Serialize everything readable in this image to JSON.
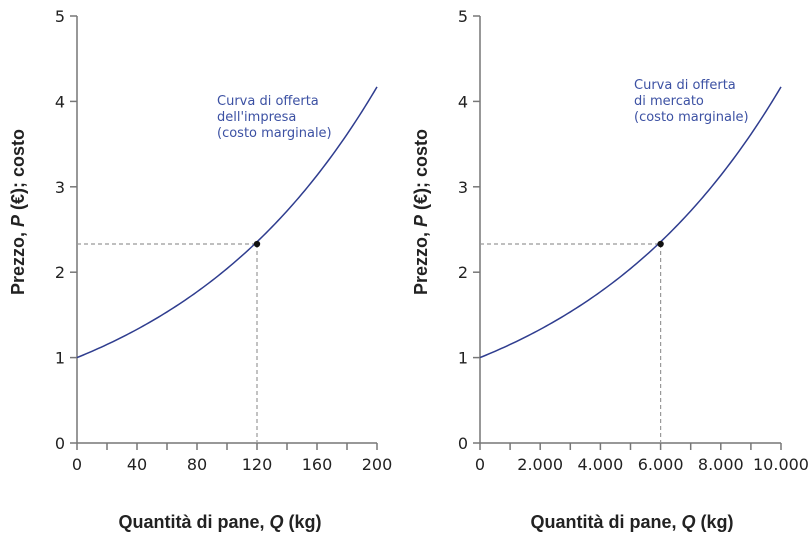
{
  "colors": {
    "curve": "#2f3d8f",
    "annotation": "#3c51a3",
    "axis": "#777777",
    "guide": "#999999",
    "point": "#111111"
  },
  "chart_data": [
    {
      "type": "line",
      "xlabel": {
        "pre": "Quantità di pane, ",
        "var": "Q",
        "post": " (kg)"
      },
      "ylabel": {
        "pre": "Prezzo, ",
        "var": "P",
        "post": " (€); costo"
      },
      "xlim": [
        0,
        200
      ],
      "ylim": [
        0,
        5
      ],
      "x_ticks": [
        0,
        40,
        80,
        120,
        160,
        200
      ],
      "x_tick_labels": [
        "0",
        "40",
        "80",
        "120",
        "160",
        "200"
      ],
      "x_minor_step": 20,
      "y_ticks": [
        0,
        1,
        2,
        3,
        4,
        5
      ],
      "y_tick_labels": [
        "0",
        "1",
        "2",
        "3",
        "4",
        "5"
      ],
      "grid": false,
      "series": [
        {
          "x": [
            0,
            20,
            40,
            60,
            80,
            100,
            120,
            140,
            160,
            180,
            200
          ],
          "y": [
            1.0,
            1.15,
            1.33,
            1.54,
            1.77,
            2.04,
            2.33,
            2.72,
            3.13,
            3.62,
            4.17
          ]
        }
      ],
      "annotation": [
        "Curva di offerta",
        "dell'impresa",
        "(costo marginale)"
      ],
      "highlight_point": {
        "x": 120,
        "y": 2.33
      }
    },
    {
      "type": "line",
      "xlabel": {
        "pre": "Quantità di pane, ",
        "var": "Q",
        "post": " (kg)"
      },
      "ylabel": {
        "pre": "Prezzo, ",
        "var": "P",
        "post": " (€); costo"
      },
      "xlim": [
        0,
        10000
      ],
      "ylim": [
        0,
        5
      ],
      "x_ticks": [
        0,
        2000,
        4000,
        6000,
        8000,
        10000
      ],
      "x_tick_labels": [
        "0",
        "2.000",
        "4.000",
        "6.000",
        "8.000",
        "10.000"
      ],
      "x_minor_step": 1000,
      "y_ticks": [
        0,
        1,
        2,
        3,
        4,
        5
      ],
      "y_tick_labels": [
        "0",
        "1",
        "2",
        "3",
        "4",
        "5"
      ],
      "grid": false,
      "series": [
        {
          "x": [
            0,
            1000,
            2000,
            3000,
            4000,
            5000,
            6000,
            7000,
            8000,
            9000,
            10000
          ],
          "y": [
            1.0,
            1.15,
            1.33,
            1.54,
            1.77,
            2.04,
            2.33,
            2.72,
            3.13,
            3.62,
            4.17
          ]
        }
      ],
      "annotation": [
        "Curva di offerta",
        "di mercato",
        "(costo marginale)"
      ],
      "highlight_point": {
        "x": 6000,
        "y": 2.33
      }
    }
  ]
}
